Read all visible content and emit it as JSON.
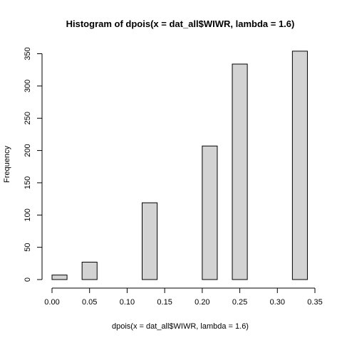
{
  "chart_data": {
    "type": "bar",
    "title": "Histogram of dpois(x = dat_all$WIWR, lambda = 1.6)",
    "xlabel": "dpois(x = dat_all$WIWR, lambda = 1.6)",
    "ylabel": "Frequency",
    "xlim": [
      0.0,
      0.35
    ],
    "ylim": [
      0,
      355
    ],
    "x_ticks": [
      "0.00",
      "0.05",
      "0.10",
      "0.15",
      "0.20",
      "0.25",
      "0.30",
      "0.35"
    ],
    "x_tick_values": [
      0.0,
      0.05,
      0.1,
      0.15,
      0.2,
      0.25,
      0.3,
      0.35
    ],
    "y_ticks": [
      "0",
      "50",
      "100",
      "150",
      "200",
      "250",
      "300",
      "350"
    ],
    "y_tick_values": [
      0,
      50,
      100,
      150,
      200,
      250,
      300,
      350
    ],
    "bins": [
      {
        "x0": 0.0,
        "x1": 0.02,
        "count": 7
      },
      {
        "x0": 0.02,
        "x1": 0.04,
        "count": 0
      },
      {
        "x0": 0.04,
        "x1": 0.06,
        "count": 27
      },
      {
        "x0": 0.06,
        "x1": 0.08,
        "count": 0
      },
      {
        "x0": 0.08,
        "x1": 0.1,
        "count": 0
      },
      {
        "x0": 0.1,
        "x1": 0.12,
        "count": 0
      },
      {
        "x0": 0.12,
        "x1": 0.14,
        "count": 119
      },
      {
        "x0": 0.14,
        "x1": 0.16,
        "count": 0
      },
      {
        "x0": 0.16,
        "x1": 0.18,
        "count": 0
      },
      {
        "x0": 0.18,
        "x1": 0.2,
        "count": 0
      },
      {
        "x0": 0.2,
        "x1": 0.22,
        "count": 207
      },
      {
        "x0": 0.22,
        "x1": 0.24,
        "count": 0
      },
      {
        "x0": 0.24,
        "x1": 0.26,
        "count": 334
      },
      {
        "x0": 0.26,
        "x1": 0.28,
        "count": 0
      },
      {
        "x0": 0.28,
        "x1": 0.3,
        "count": 0
      },
      {
        "x0": 0.3,
        "x1": 0.32,
        "count": 0
      },
      {
        "x0": 0.32,
        "x1": 0.34,
        "count": 354
      }
    ],
    "bar_fill": "#d3d3d3",
    "bar_stroke": "#000000",
    "grid": false
  }
}
